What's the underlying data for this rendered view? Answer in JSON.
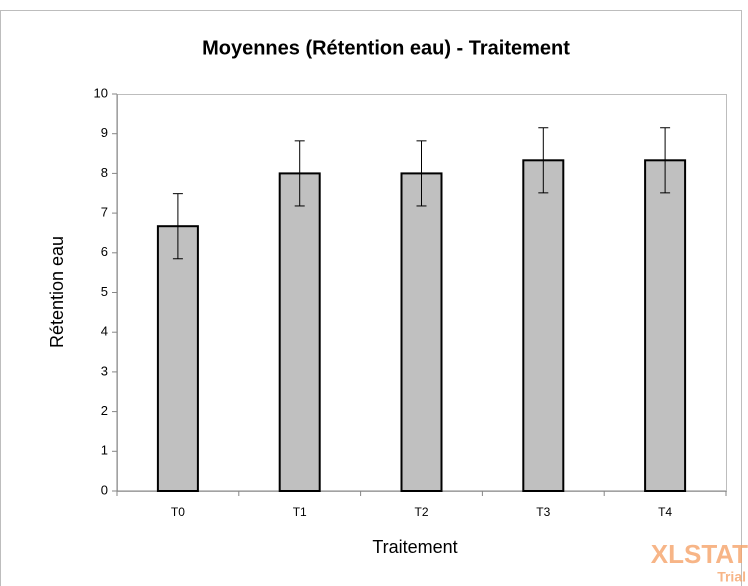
{
  "chart_data": {
    "type": "bar",
    "title": "Moyennes (Rétention eau) - Traitement",
    "x_label": "Traitement",
    "y_label": "Rétention eau",
    "categories": [
      "T0",
      "T1",
      "T2",
      "T3",
      "T4"
    ],
    "values": [
      6.67,
      8,
      8,
      8.33,
      8.33
    ],
    "errors": [
      0.82,
      0.82,
      0.82,
      0.82,
      0.82
    ],
    "color": "#c0c0c0",
    "ylim": [
      0,
      10
    ],
    "yticks": [
      0,
      1,
      2,
      3,
      4,
      5,
      6,
      7,
      8,
      9,
      10
    ],
    "grid": false
  },
  "watermark": {
    "brand": "XLSTAT",
    "note": "Trial"
  }
}
